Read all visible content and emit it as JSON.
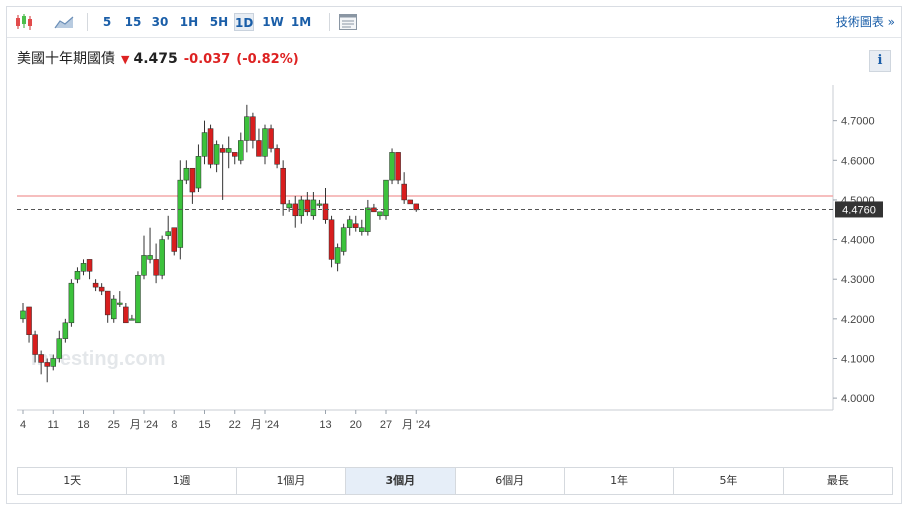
{
  "toolbar": {
    "intervals": [
      "5",
      "15",
      "30",
      "1H",
      "5H",
      "1D",
      "1W",
      "1M"
    ],
    "active_interval": "1D",
    "chart_link": "技術圖表 »"
  },
  "header": {
    "name": "美國十年期國債",
    "price": "4.475",
    "change": "-0.037",
    "change_pct": "(-0.82%)"
  },
  "watermark": "Investing.com",
  "ranges": [
    "1天",
    "1週",
    "1個月",
    "3個月",
    "6個月",
    "1年",
    "5年",
    "最長"
  ],
  "active_range": "3個月",
  "colors": {
    "up": "#3cc23c",
    "down": "#d81e1e",
    "accent": "#1a5ea8",
    "resistance": "#f3a9a9"
  },
  "chart_data": {
    "type": "candlestick",
    "ylim": [
      3.97,
      4.79
    ],
    "y_ticks": [
      "4.0000",
      "4.1000",
      "4.2000",
      "4.3000",
      "4.4000",
      "4.5000",
      "4.6000",
      "4.7000"
    ],
    "y_tick_values": [
      4.0,
      4.1,
      4.2,
      4.3,
      4.4,
      4.5,
      4.6,
      4.7
    ],
    "x_ticks": [
      {
        "label": "4",
        "index": 0
      },
      {
        "label": "11",
        "index": 5
      },
      {
        "label": "18",
        "index": 10
      },
      {
        "label": "25",
        "index": 15
      },
      {
        "label": "月 '24",
        "index": 20
      },
      {
        "label": "8",
        "index": 25
      },
      {
        "label": "15",
        "index": 30
      },
      {
        "label": "22",
        "index": 35
      },
      {
        "label": "月 '24",
        "index": 40
      },
      {
        "label": "13",
        "index": 50
      },
      {
        "label": "20",
        "index": 55
      },
      {
        "label": "27",
        "index": 60
      },
      {
        "label": "月 '24",
        "index": 65
      }
    ],
    "current_price": 4.476,
    "current_label": "4.4760",
    "resistance_line": 4.51,
    "candles": [
      [
        4.2,
        4.24,
        4.19,
        4.22
      ],
      [
        4.23,
        4.23,
        4.14,
        4.16
      ],
      [
        4.16,
        4.17,
        4.09,
        4.11
      ],
      [
        4.11,
        4.12,
        4.06,
        4.09
      ],
      [
        4.09,
        4.1,
        4.04,
        4.08
      ],
      [
        4.08,
        4.11,
        4.07,
        4.1
      ],
      [
        4.1,
        4.17,
        4.09,
        4.15
      ],
      [
        4.15,
        4.2,
        4.14,
        4.19
      ],
      [
        4.19,
        4.3,
        4.18,
        4.29
      ],
      [
        4.3,
        4.33,
        4.29,
        4.32
      ],
      [
        4.32,
        4.35,
        4.31,
        4.34
      ],
      [
        4.35,
        4.35,
        4.3,
        4.32
      ],
      [
        4.29,
        4.3,
        4.27,
        4.28
      ],
      [
        4.28,
        4.29,
        4.26,
        4.27
      ],
      [
        4.27,
        4.27,
        4.19,
        4.21
      ],
      [
        4.2,
        4.26,
        4.19,
        4.25
      ],
      [
        4.24,
        4.27,
        4.23,
        4.24
      ],
      [
        4.23,
        4.24,
        4.19,
        4.19
      ],
      [
        4.2,
        4.21,
        4.2,
        4.2
      ],
      [
        4.19,
        4.32,
        4.19,
        4.31
      ],
      [
        4.31,
        4.41,
        4.3,
        4.36
      ],
      [
        4.35,
        4.43,
        4.34,
        4.36
      ],
      [
        4.35,
        4.39,
        4.29,
        4.31
      ],
      [
        4.31,
        4.41,
        4.3,
        4.4
      ],
      [
        4.41,
        4.46,
        4.4,
        4.42
      ],
      [
        4.43,
        4.43,
        4.36,
        4.37
      ],
      [
        4.38,
        4.6,
        4.35,
        4.55
      ],
      [
        4.55,
        4.6,
        4.54,
        4.58
      ],
      [
        4.58,
        4.58,
        4.49,
        4.52
      ],
      [
        4.53,
        4.64,
        4.52,
        4.61
      ],
      [
        4.61,
        4.7,
        4.59,
        4.67
      ],
      [
        4.68,
        4.69,
        4.58,
        4.59
      ],
      [
        4.59,
        4.65,
        4.57,
        4.64
      ],
      [
        4.63,
        4.64,
        4.5,
        4.62
      ],
      [
        4.62,
        4.66,
        4.58,
        4.63
      ],
      [
        4.62,
        4.62,
        4.59,
        4.61
      ],
      [
        4.6,
        4.67,
        4.59,
        4.65
      ],
      [
        4.65,
        4.74,
        4.62,
        4.71
      ],
      [
        4.71,
        4.72,
        4.63,
        4.65
      ],
      [
        4.65,
        4.68,
        4.61,
        4.61
      ],
      [
        4.61,
        4.69,
        4.59,
        4.68
      ],
      [
        4.68,
        4.69,
        4.62,
        4.63
      ],
      [
        4.63,
        4.64,
        4.58,
        4.59
      ],
      [
        4.58,
        4.6,
        4.46,
        4.49
      ],
      [
        4.48,
        4.5,
        4.47,
        4.49
      ],
      [
        4.49,
        4.51,
        4.43,
        4.46
      ],
      [
        4.46,
        4.51,
        4.44,
        4.5
      ],
      [
        4.5,
        4.52,
        4.46,
        4.47
      ],
      [
        4.46,
        4.52,
        4.45,
        4.5
      ],
      [
        4.49,
        4.5,
        4.48,
        4.49
      ],
      [
        4.49,
        4.53,
        4.44,
        4.45
      ],
      [
        4.45,
        4.46,
        4.33,
        4.35
      ],
      [
        4.34,
        4.39,
        4.32,
        4.38
      ],
      [
        4.37,
        4.44,
        4.36,
        4.43
      ],
      [
        4.43,
        4.46,
        4.41,
        4.45
      ],
      [
        4.44,
        4.46,
        4.42,
        4.43
      ],
      [
        4.42,
        4.45,
        4.41,
        4.43
      ],
      [
        4.42,
        4.5,
        4.41,
        4.48
      ],
      [
        4.48,
        4.49,
        4.47,
        4.47
      ],
      [
        4.46,
        4.47,
        4.45,
        4.47
      ],
      [
        4.46,
        4.55,
        4.45,
        4.55
      ],
      [
        4.55,
        4.63,
        4.54,
        4.62
      ],
      [
        4.62,
        4.62,
        4.54,
        4.55
      ],
      [
        4.54,
        4.57,
        4.49,
        4.5
      ],
      [
        4.5,
        4.5,
        4.49,
        4.49
      ],
      [
        4.49,
        4.49,
        4.47,
        4.475
      ]
    ]
  }
}
